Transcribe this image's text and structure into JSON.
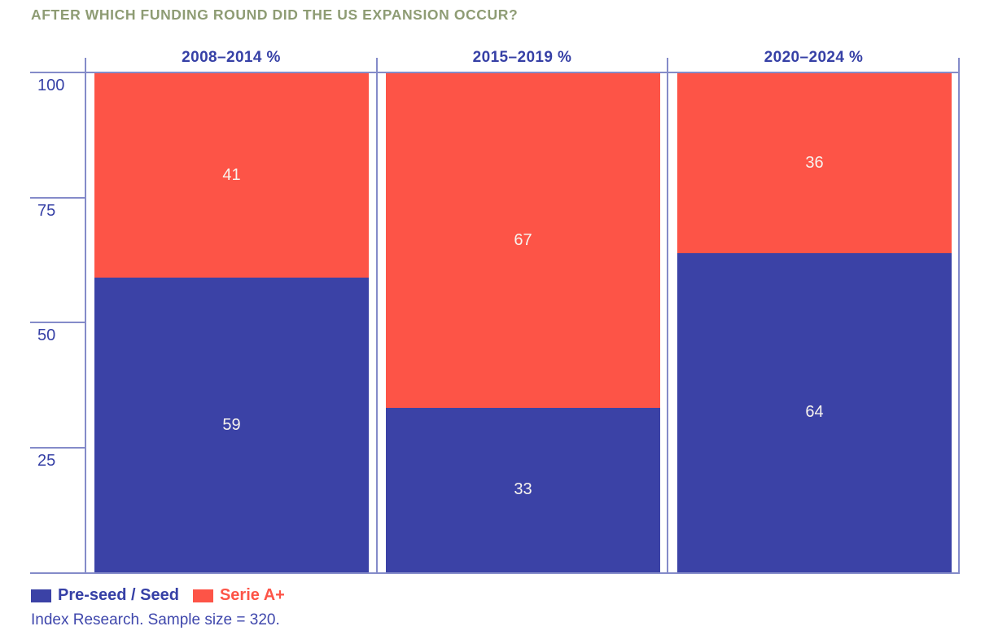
{
  "title": "AFTER WHICH FUNDING ROUND DID THE US EXPANSION OCCUR?",
  "axis": {
    "tick_labels": [
      "100",
      "75",
      "50",
      "25"
    ]
  },
  "legend": [
    {
      "label": "Pre-seed / Seed",
      "color": "#3B42A6"
    },
    {
      "label": "Serie A+",
      "color": "#FD5447"
    }
  ],
  "source": "Index Research. Sample size = 320.",
  "colors": {
    "blue": "#3B42A6",
    "red": "#FD5447",
    "axis_line": "#848BC9",
    "title_green": "#8E9C74",
    "value_label": "#F7F3EE"
  },
  "chart_data": {
    "type": "bar",
    "stacked": true,
    "categories": [
      "2008–2014 %",
      "2015–2019 %",
      "2020–2024 %"
    ],
    "series": [
      {
        "name": "Pre-seed / Seed",
        "color": "#3B42A6",
        "values": [
          59,
          33,
          64
        ]
      },
      {
        "name": "Serie A+",
        "color": "#FD5447",
        "values": [
          41,
          67,
          36
        ]
      }
    ],
    "ylim": [
      0,
      100
    ],
    "yticks": [
      100,
      75,
      50,
      25
    ],
    "grid": false,
    "legend_position": "bottom-left",
    "source_note": "Index Research. Sample size = 320."
  }
}
